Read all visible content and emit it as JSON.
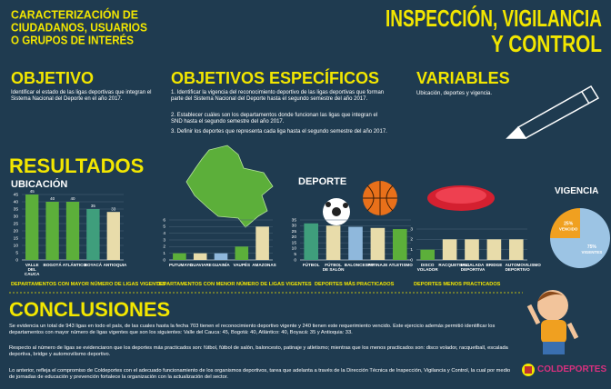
{
  "header": {
    "left_title": [
      "CARACTERIZACIÓN DE",
      "CIUDADANOS, USUARIOS",
      "O GRUPOS DE INTERÉS"
    ],
    "right_title": [
      "INSPECCIÓN, VIGILANCIA",
      "Y CONTROL"
    ]
  },
  "objective": {
    "heading": "OBJETIVO",
    "text": "Identificar el estado de las ligas deportivas que integran el Sistema Nacional del Deporte en el año 2017."
  },
  "specific_objectives": {
    "heading": "OBJETIVOS ESPECÍFICOS",
    "items": [
      "1. Identificar la vigencia del reconocimiento deportivo de las ligas deportivas que forman parte del Sistema Nacional del Deporte hasta el segundo semestre del año 2017.",
      "2. Establecer cuáles son los departamentos donde funcionan las ligas que integran el SND hasta el segundo semestre del año 2017.",
      "3. Definir los deportes que representa cada liga hasta el segundo semestre del año 2017."
    ]
  },
  "variables": {
    "heading": "VARIABLES",
    "text": "Ubicación, deportes y vigencia."
  },
  "results_heading": "RESULTADOS",
  "chart_data": [
    {
      "type": "bar",
      "heading": "UBICACIÓN",
      "title": "DEPARTAMENTOS CON MAYOR NÚMERO DE LIGAS VIGENTES",
      "categories": [
        "VALLE DEL CAUCA",
        "BOGOTÁ",
        "ATLÁNTICO",
        "BOYACÁ",
        "ANTIOQUIA"
      ],
      "values": [
        45,
        40,
        40,
        35,
        33
      ],
      "colors": [
        "#5caf3a",
        "#5caf3a",
        "#5caf3a",
        "#3f9e7c",
        "#e8dcaa"
      ],
      "ylim": [
        0,
        45
      ],
      "yticks": [
        0,
        5,
        10,
        15,
        20,
        25,
        30,
        35,
        40,
        45
      ],
      "grid": true,
      "data_labels": true
    },
    {
      "type": "bar",
      "title": "DEPARTAMENTOS CON MENOR NÚMERO DE LIGAS VIGENTES",
      "categories": [
        "PUTUMAYO",
        "GUAVIARE",
        "GUAINÍA",
        "VAUPÉS",
        "AMAZONAS"
      ],
      "values": [
        1,
        1,
        1,
        2,
        5
      ],
      "colors": [
        "#5caf3a",
        "#e8dcaa",
        "#8fb8dc",
        "#5caf3a",
        "#e8dcaa"
      ],
      "ylim": [
        0,
        6
      ],
      "yticks": [
        0,
        1,
        2,
        3,
        4,
        5,
        6
      ],
      "grid": true
    },
    {
      "type": "bar",
      "heading": "DEPORTE",
      "title": "DEPORTES MÁS PRACTICADOS",
      "categories": [
        "FÚTBOL",
        "FÚTBOL DE SALÓN",
        "BALONCESTO",
        "PATINAJE",
        "ATLETISMO"
      ],
      "values": [
        32,
        30,
        29,
        28,
        27
      ],
      "colors": [
        "#3f9e7c",
        "#e8dcaa",
        "#8fb8dc",
        "#e8dcaa",
        "#5caf3a"
      ],
      "ylim": [
        0,
        35
      ],
      "yticks": [
        0,
        5,
        10,
        15,
        20,
        25,
        30,
        35
      ],
      "grid": true
    },
    {
      "type": "bar",
      "title": "DEPORTES MENOS PRACTICADOS",
      "categories": [
        "DISCO VOLADOR",
        "RACQUETBALL",
        "ESCALADA DEPORTIVA",
        "BRIDGE",
        "AUTOMOVILISMO DEPORTIVO"
      ],
      "values": [
        1,
        2,
        2,
        2,
        2
      ],
      "colors": [
        "#5caf3a",
        "#e8dcaa",
        "#e8dcaa",
        "#e8dcaa",
        "#e8dcaa"
      ],
      "ylim": [
        0,
        3
      ],
      "yticks": [
        0,
        1,
        2,
        3
      ],
      "grid": true
    },
    {
      "type": "pie",
      "title": "VIGENCIA",
      "categories": [
        "VENCIDO",
        "VIGENTES"
      ],
      "values": [
        25,
        75
      ],
      "value_labels": [
        "25%",
        "75%"
      ],
      "colors": [
        "#f0a020",
        "#9cc4e4"
      ]
    }
  ],
  "conclusions": {
    "heading": "CONCLUSIONES",
    "paragraphs": [
      "Se evidencia un total de 943 ligas en todo el país, de las cuales hasta la fecha 703 tienen el reconocimiento deportivo vigente y 240 tienen este requerimiento vencido. Este ejercicio además permitió identificar los departamentos con mayor número de ligas vigentes que son los siguientes: Valle del Cauca: 45, Bogotá: 40, Atlántico: 40, Boyacá: 35 y Antioquia: 33.",
      "Respecto al número de ligas se evidenciaron que los deportes más practicados son: fútbol, fútbol de salón, baloncesto, patinaje y atletismo; mientras que los menos practicados son: disco volador, racquetball, escalada deportiva, bridge y automovilismo deportivo.",
      "Lo anterior, refleja el compromiso de Coldeportes con el adecuado funcionamiento de los organismos deportivos, tarea que adelanta a través de la Dirección Técnica de Inspección, Vigilancia y Control, la cual por medio de jornadas de educación y prevención fortalece la organización con la actualización del sector."
    ]
  },
  "logo": "COLDEPORTES"
}
